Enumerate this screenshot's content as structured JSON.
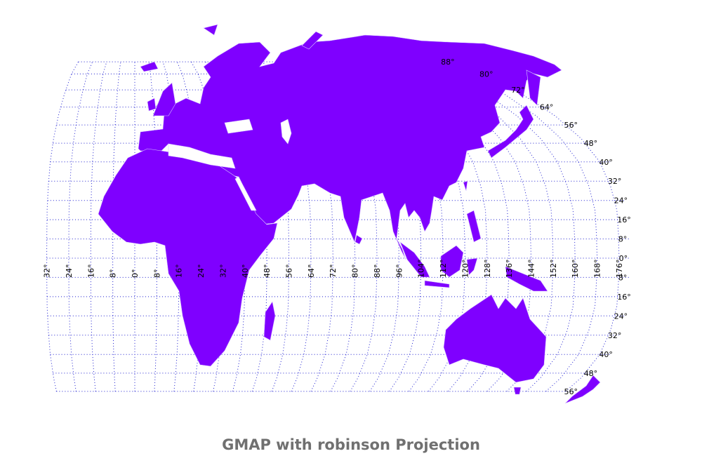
{
  "title": "GMAP with robinson Projection",
  "latitude_labels": [
    "88°",
    "80°",
    "72°",
    "64°",
    "56°",
    "48°",
    "40°",
    "32°",
    "24°",
    "16°",
    "8°",
    "0°",
    "8°",
    "16°",
    "24°",
    "32°",
    "40°",
    "48°",
    "56°"
  ],
  "longitude_labels": [
    "32°",
    "24°",
    "16°",
    "8°",
    "0°",
    "8°",
    "16°",
    "24°",
    "32°",
    "40°",
    "48°",
    "56°",
    "64°",
    "72°",
    "80°",
    "88°",
    "96°",
    "104°",
    "112°",
    "120°",
    "128°",
    "136°",
    "144°",
    "152°",
    "160°",
    "168°",
    "176°"
  ]
}
